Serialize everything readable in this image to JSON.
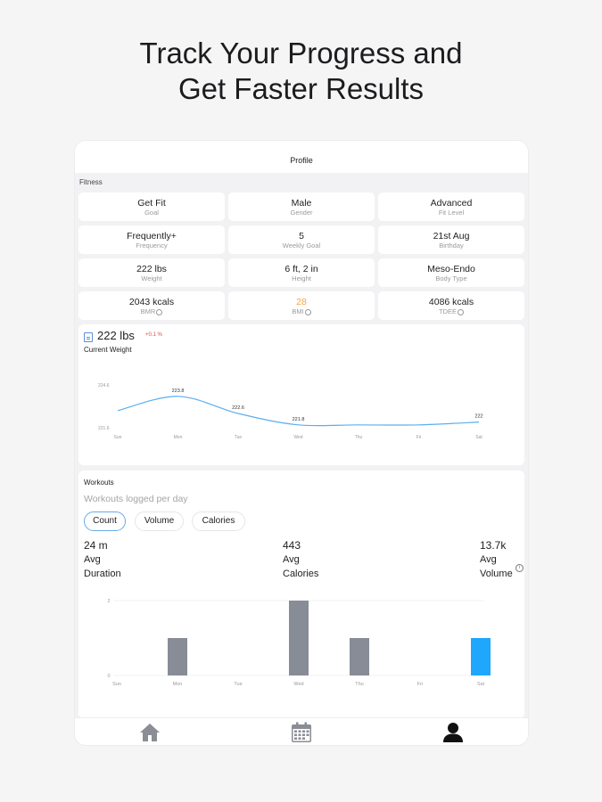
{
  "headline": {
    "line1": "Track Your Progress and",
    "line2": "Get Faster Results"
  },
  "nav": {
    "title": "Profile"
  },
  "fitness": {
    "label": "Fitness",
    "tiles": [
      {
        "value": "Get Fit",
        "label": "Goal"
      },
      {
        "value": "Male",
        "label": "Gender"
      },
      {
        "value": "Advanced",
        "label": "Fit Level"
      },
      {
        "value": "Frequently+",
        "label": "Frequency"
      },
      {
        "value": "5",
        "label": "Weekly Goal"
      },
      {
        "value": "21st Aug",
        "label": "Birthday"
      },
      {
        "value": "222 lbs",
        "label": "Weight"
      },
      {
        "value": "6 ft, 2 in",
        "label": "Height"
      },
      {
        "value": "Meso-Endo",
        "label": "Body Type"
      },
      {
        "value": "2043 kcals",
        "label": "BMR"
      },
      {
        "value": "28",
        "label": "BMI"
      },
      {
        "value": "4086 kcals",
        "label": "TDEE"
      }
    ],
    "bmi_color": "#f5a443"
  },
  "weight": {
    "value": "222 lbs",
    "delta": "+0.1 %",
    "title": "Current Weight"
  },
  "workouts": {
    "title": "Workouts",
    "subtitle": "Workouts logged per day",
    "tabs": [
      "Count",
      "Volume",
      "Calories"
    ],
    "active_tab": "Count",
    "stats": [
      {
        "value": "24 m",
        "line1": "Avg",
        "line2": "Duration"
      },
      {
        "value": "443",
        "line1": "Avg",
        "line2": "Calories"
      },
      {
        "value": "13.7k",
        "line1": "Avg",
        "line2": "Volume"
      }
    ]
  },
  "chart_data": [
    {
      "type": "line",
      "categories": [
        "Sun",
        "Mon",
        "Tue",
        "Wed",
        "Thu",
        "Fri",
        "Sat"
      ],
      "ytick_labels": [
        "224.6",
        "221.6"
      ],
      "ylim": [
        221.6,
        224.6
      ],
      "points": [
        {
          "x": "Sun",
          "y": 222.8
        },
        {
          "x": "Mon",
          "y": 223.8,
          "label": "223.8"
        },
        {
          "x": "Tue",
          "y": 222.6,
          "label": "222.6"
        },
        {
          "x": "Wed",
          "y": 221.8,
          "label": "221.8"
        },
        {
          "x": "Thu",
          "y": 221.8
        },
        {
          "x": "Fri",
          "y": 221.8
        },
        {
          "x": "Sat",
          "y": 222,
          "label": "222"
        }
      ],
      "color": "#5aaef0"
    },
    {
      "type": "bar",
      "categories": [
        "Sun",
        "Mon",
        "Tue",
        "Wed",
        "Thu",
        "Fri",
        "Sat"
      ],
      "values": [
        0,
        1,
        0,
        2,
        1,
        0,
        1
      ],
      "highlight": "Sat",
      "ytick_labels": [
        "2",
        "0"
      ],
      "ylim": [
        0,
        2
      ],
      "colors": {
        "bar": "#878c97",
        "highlight": "#1ea7fd"
      }
    }
  ],
  "tabbar": {
    "items": [
      "home-icon",
      "calendar-icon",
      "profile-icon"
    ],
    "active": "profile-icon"
  }
}
